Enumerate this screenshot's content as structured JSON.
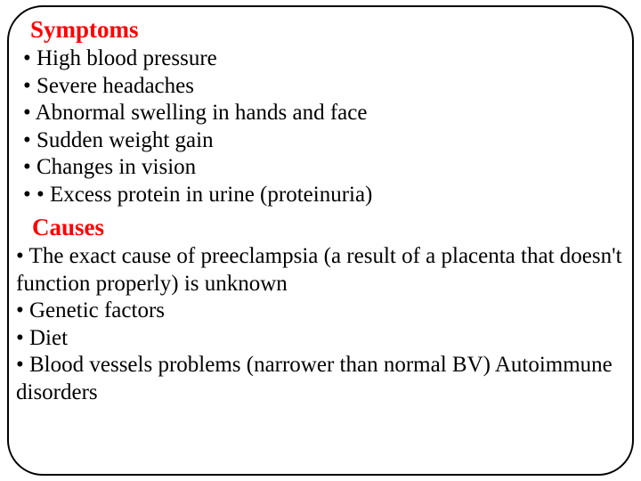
{
  "colors": {
    "heading_color": "#ff0000",
    "text_color": "#000000",
    "border_color": "#000000",
    "background": "#ffffff"
  },
  "typography": {
    "heading_fontsize": 27,
    "body_fontsize": 25,
    "font_family": "Times New Roman"
  },
  "sections": {
    "symptoms": {
      "title": "Symptoms",
      "items": [
        "• High blood pressure",
        "• Severe headaches",
        "• Abnormal swelling in hands and face",
        "• Sudden weight gain",
        "• Changes in vision",
        "• • Excess protein in urine (proteinuria)"
      ]
    },
    "causes": {
      "title": "Causes",
      "items": [
        "• The exact cause of preeclampsia (a result of a placenta that doesn't function properly) is unknown",
        "• Genetic factors",
        "• Diet",
        "• Blood vessels problems (narrower than normal BV) Autoimmune disorders"
      ]
    }
  }
}
